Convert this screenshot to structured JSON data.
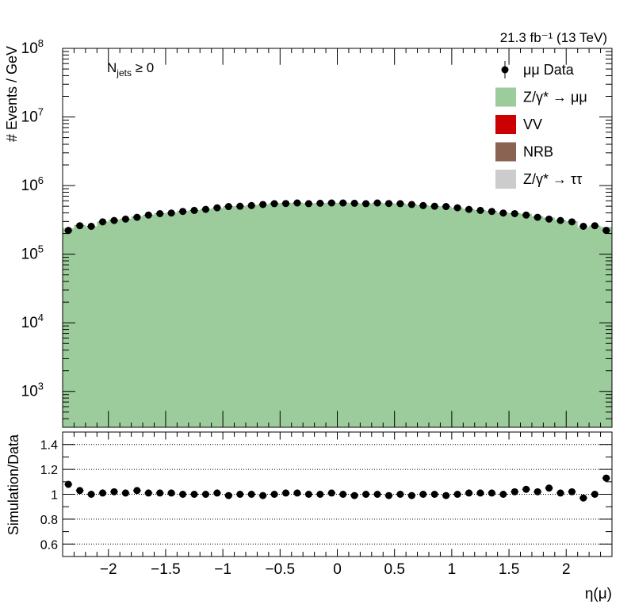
{
  "chart_data": [
    {
      "type": "area",
      "xlabel": "η(μ)",
      "ylabel": "# Events / GeV",
      "lumi_label": "21.3 fb⁻¹ (13 TeV)",
      "category_label": "N_jets ≥ 0",
      "category_main": "N",
      "category_sub": "jets",
      "category_rest": " ≥ 0",
      "xlim": [
        -2.4,
        2.4
      ],
      "ylim": [
        300,
        100000000
      ],
      "log_y": true,
      "grid": false,
      "legend_position": "top-right",
      "x_tick_labels": [
        "−2",
        "−1.5",
        "−1",
        "−0.5",
        "0",
        "0.5",
        "1",
        "1.5",
        "2"
      ],
      "y_tick_labels": [
        {
          "base": "10",
          "exp": "3"
        },
        {
          "base": "10",
          "exp": "4"
        },
        {
          "base": "10",
          "exp": "5"
        },
        {
          "base": "10",
          "exp": "6"
        },
        {
          "base": "10",
          "exp": "7"
        },
        {
          "base": "10",
          "exp": "8"
        }
      ],
      "legend": [
        {
          "label": "μμ Data",
          "marker": "point",
          "color": "#000000"
        },
        {
          "label": "Z/γ* → μμ",
          "marker": "box",
          "color": "#9ccc9c"
        },
        {
          "label": "VV",
          "marker": "box",
          "color": "#cc0000"
        },
        {
          "label": "NRB",
          "marker": "box",
          "color": "#8a6353"
        },
        {
          "label": "Z/γ* → ττ",
          "marker": "box",
          "color": "#cccccc"
        }
      ],
      "x": [
        -2.35,
        -2.25,
        -2.15,
        -2.05,
        -1.95,
        -1.85,
        -1.75,
        -1.65,
        -1.55,
        -1.45,
        -1.35,
        -1.25,
        -1.15,
        -1.05,
        -0.95,
        -0.85,
        -0.75,
        -0.65,
        -0.55,
        -0.45,
        -0.35,
        -0.25,
        -0.15,
        -0.05,
        0.05,
        0.15,
        0.25,
        0.35,
        0.45,
        0.55,
        0.65,
        0.75,
        0.85,
        0.95,
        1.05,
        1.15,
        1.25,
        1.35,
        1.45,
        1.55,
        1.65,
        1.75,
        1.85,
        1.95,
        2.05,
        2.15,
        2.25,
        2.35
      ],
      "series": [
        {
          "name": "μμ Data",
          "style": "points",
          "color": "#000000",
          "values": [
            222000,
            260000,
            255000,
            296000,
            310000,
            325000,
            345000,
            372000,
            390000,
            398000,
            420000,
            435000,
            450000,
            475000,
            495000,
            500000,
            512000,
            530000,
            545000,
            548000,
            558000,
            545000,
            552000,
            558000,
            558000,
            552000,
            545000,
            558000,
            548000,
            545000,
            530000,
            512000,
            500000,
            495000,
            475000,
            450000,
            435000,
            420000,
            398000,
            390000,
            372000,
            345000,
            325000,
            310000,
            296000,
            255000,
            260000,
            222000
          ]
        },
        {
          "name": "Z/γ* → μμ",
          "style": "fill",
          "color": "#9ccc9c",
          "values": [
            240000,
            268000,
            255000,
            298000,
            318000,
            330000,
            356000,
            375000,
            396000,
            402000,
            426000,
            437000,
            455000,
            472000,
            497000,
            505000,
            517000,
            531000,
            553000,
            556000,
            564000,
            550000,
            555000,
            562000,
            562000,
            553000,
            550000,
            560000,
            550000,
            545000,
            530000,
            515000,
            500000,
            494000,
            475000,
            455000,
            440000,
            425000,
            400000,
            398000,
            388000,
            358000,
            342000,
            314000,
            302000,
            246000,
            260000,
            250000
          ]
        }
      ]
    },
    {
      "type": "scatter",
      "xlabel": "η(μ)",
      "ylabel": "Simulation/Data",
      "xlim": [
        -2.4,
        2.4
      ],
      "ylim": [
        0.5,
        1.5
      ],
      "grid": true,
      "grid_y": [
        0.6,
        0.8,
        1.0,
        1.2,
        1.4
      ],
      "x_tick_labels": [
        "−2",
        "−1.5",
        "−1",
        "−0.5",
        "0",
        "0.5",
        "1",
        "1.5",
        "2"
      ],
      "y_tick_labels": [
        "0.6",
        "0.8",
        "1",
        "1.2",
        "1.4"
      ],
      "x": [
        -2.35,
        -2.25,
        -2.15,
        -2.05,
        -1.95,
        -1.85,
        -1.75,
        -1.65,
        -1.55,
        -1.45,
        -1.35,
        -1.25,
        -1.15,
        -1.05,
        -0.95,
        -0.85,
        -0.75,
        -0.65,
        -0.55,
        -0.45,
        -0.35,
        -0.25,
        -0.15,
        -0.05,
        0.05,
        0.15,
        0.25,
        0.35,
        0.45,
        0.55,
        0.65,
        0.75,
        0.85,
        0.95,
        1.05,
        1.15,
        1.25,
        1.35,
        1.45,
        1.55,
        1.65,
        1.75,
        1.85,
        1.95,
        2.05,
        2.15,
        2.25,
        2.35
      ],
      "values": [
        1.08,
        1.03,
        1.0,
        1.01,
        1.02,
        1.01,
        1.03,
        1.01,
        1.01,
        1.01,
        1.0,
        1.0,
        1.0,
        1.01,
        0.99,
        1.0,
        1.0,
        0.99,
        1.0,
        1.01,
        1.01,
        1.0,
        1.0,
        1.01,
        1.0,
        0.99,
        1.0,
        1.0,
        0.99,
        1.0,
        0.99,
        1.0,
        1.0,
        0.99,
        1.0,
        1.01,
        1.01,
        1.01,
        1.0,
        1.02,
        1.04,
        1.02,
        1.05,
        1.01,
        1.02,
        0.97,
        1.0,
        1.13
      ]
    }
  ]
}
